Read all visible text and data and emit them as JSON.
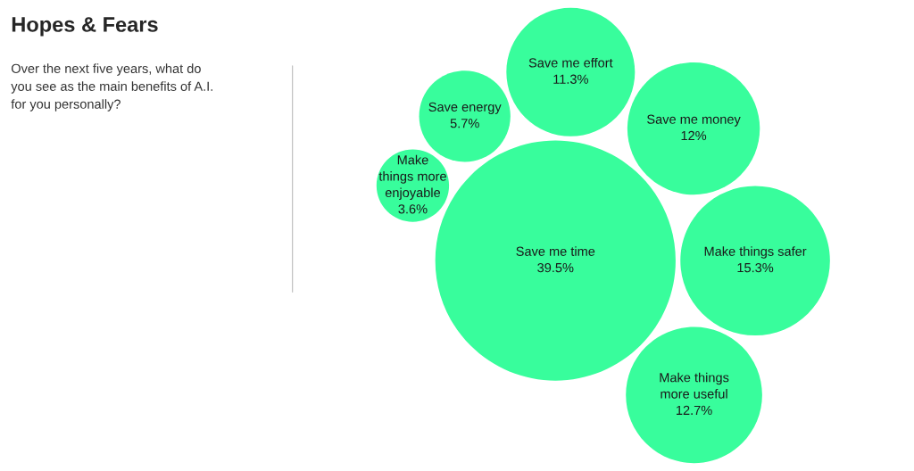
{
  "chart_data": {
    "type": "other",
    "title": "Hopes & Fears",
    "subtitle": "Over the next five years, what do\nyou see as the main benefits of A.I.\nfor you personally?",
    "categories": [
      "Save me time",
      "Make things safer",
      "Make things\nmore useful",
      "Save me money",
      "Save me effort",
      "Save energy",
      "Make\nthings more\nenjoyable"
    ],
    "values": [
      39.5,
      15.3,
      12.7,
      12,
      11.3,
      5.7,
      3.6
    ],
    "value_labels": [
      "39.5%",
      "15.3%",
      "12.7%",
      "12%",
      "11.3%",
      "5.7%",
      "3.6%"
    ],
    "color": "#38fd9c"
  }
}
